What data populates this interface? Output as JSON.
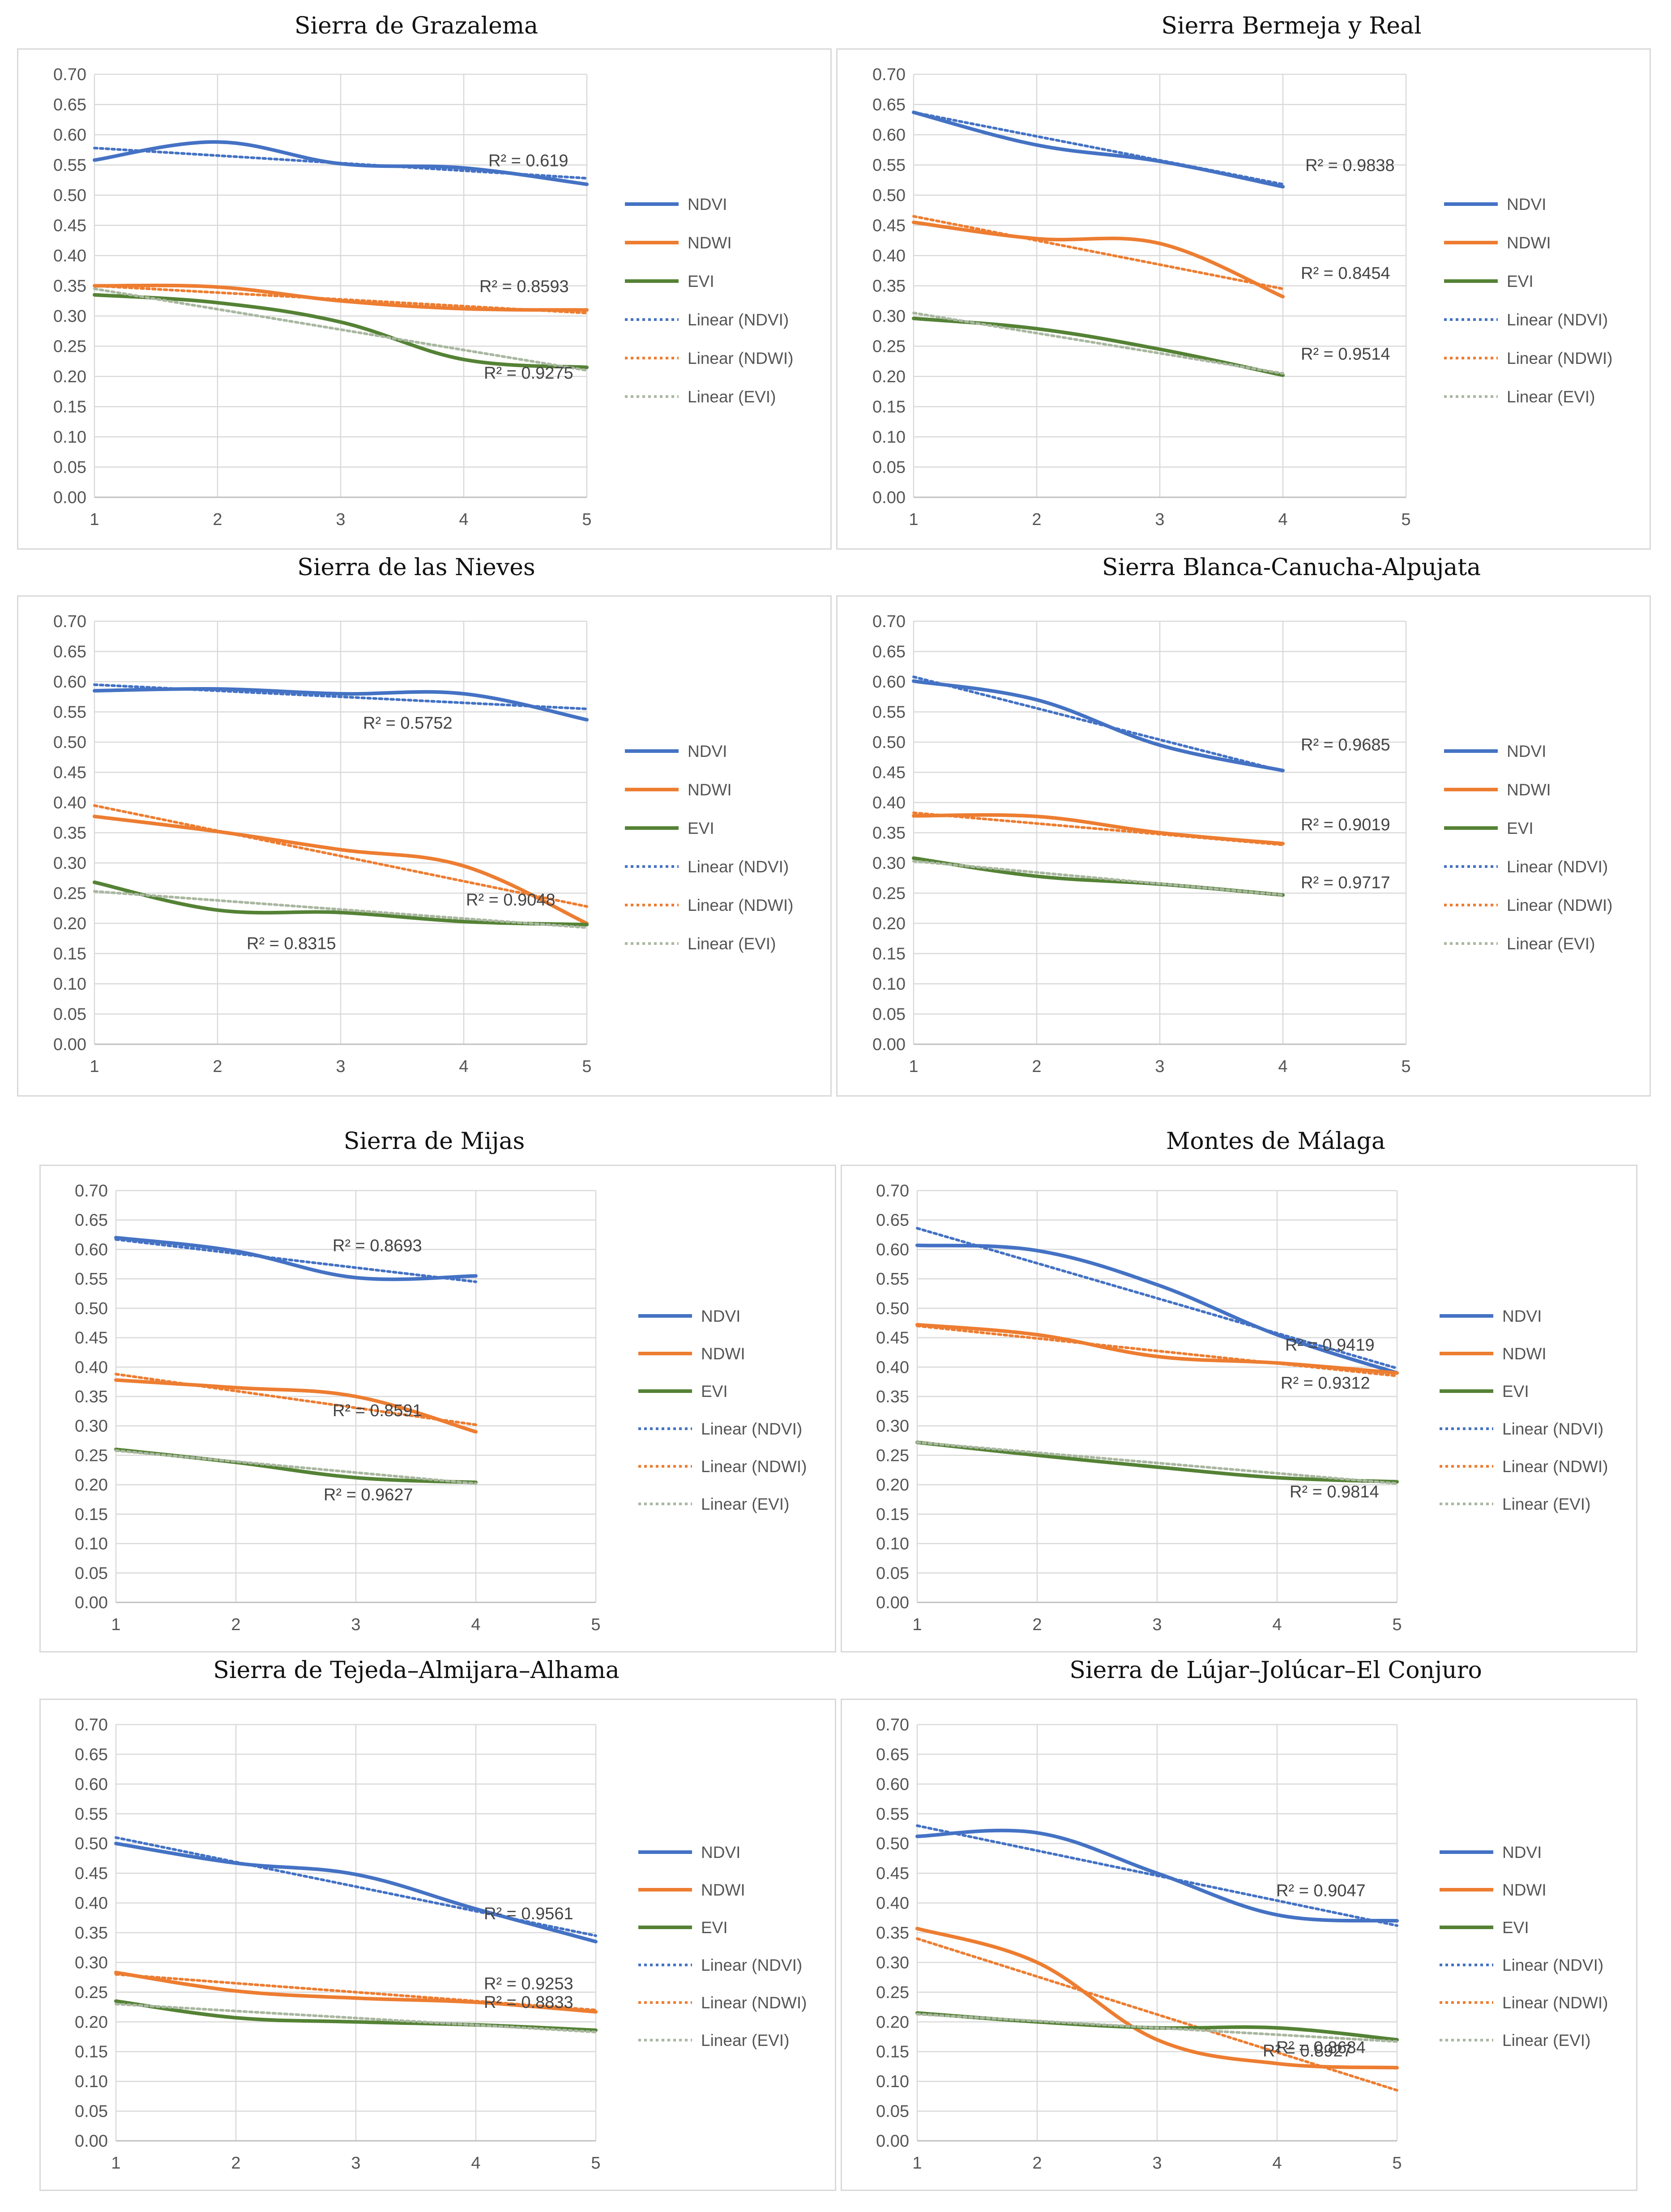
{
  "colors": {
    "ndvi": "#4472c4",
    "ndwi": "#ed7d31",
    "evi": "#548235",
    "evi_trend": "#a9b7a0"
  },
  "legend_labels": [
    "NDVI",
    "NDWI",
    "EVI",
    "Linear (NDVI)",
    "Linear (NDWI)",
    "Linear (EVI)"
  ],
  "chart_data": [
    {
      "type": "line",
      "title": "Sierra de Grazalema",
      "x_ticks": [
        "1",
        "2",
        "3",
        "4",
        "5"
      ],
      "y_ticks": [
        "0.70",
        "0.65",
        "0.60",
        "0.55",
        "0.50",
        "0.45",
        "0.40",
        "0.35",
        "0.30",
        "0.25",
        "0.20",
        "0.15",
        "0.10",
        "0.05",
        "0.00"
      ],
      "ylim": [
        0,
        0.7
      ],
      "xlim": [
        1,
        5
      ],
      "legend_position": "right",
      "series": [
        {
          "name": "NDVI",
          "x": [
            1,
            2,
            3,
            4,
            5
          ],
          "values": [
            0.558,
            0.588,
            0.552,
            0.545,
            0.518
          ],
          "trend": [
            0.578,
            0.528
          ],
          "r2": "R² = 0.619"
        },
        {
          "name": "NDWI",
          "x": [
            1,
            2,
            3,
            4,
            5
          ],
          "values": [
            0.35,
            0.348,
            0.325,
            0.312,
            0.31
          ],
          "trend": [
            0.35,
            0.305
          ],
          "r2": "R² = 0.8593"
        },
        {
          "name": "EVI",
          "x": [
            1,
            2,
            3,
            4,
            5
          ],
          "values": [
            0.335,
            0.322,
            0.29,
            0.228,
            0.215
          ],
          "trend": [
            0.345,
            0.21
          ],
          "r2": "R² = 0.9275"
        }
      ]
    },
    {
      "type": "line",
      "title": "Sierra Bermeja y Real",
      "x_ticks": [
        "1",
        "2",
        "3",
        "4",
        "5"
      ],
      "y_ticks": [
        "0.70",
        "0.65",
        "0.60",
        "0.55",
        "0.50",
        "0.45",
        "0.40",
        "0.35",
        "0.30",
        "0.25",
        "0.20",
        "0.15",
        "0.10",
        "0.05",
        "0.00"
      ],
      "ylim": [
        0,
        0.7
      ],
      "xlim": [
        1,
        5
      ],
      "legend_position": "right",
      "series": [
        {
          "name": "NDVI",
          "x": [
            1,
            2,
            3,
            4
          ],
          "values": [
            0.637,
            0.583,
            0.556,
            0.514
          ],
          "trend": [
            0.637,
            0.518
          ],
          "r2": "R² = 0.9838"
        },
        {
          "name": "NDWI",
          "x": [
            1,
            2,
            3,
            4
          ],
          "values": [
            0.455,
            0.428,
            0.42,
            0.332
          ],
          "trend": [
            0.465,
            0.345
          ],
          "r2": "R² = 0.8454"
        },
        {
          "name": "EVI",
          "x": [
            1,
            2,
            3,
            4
          ],
          "values": [
            0.296,
            0.279,
            0.245,
            0.202
          ],
          "trend": [
            0.305,
            0.205
          ],
          "r2": "R² = 0.9514"
        }
      ]
    },
    {
      "type": "line",
      "title": "Sierra de las Nieves",
      "x_ticks": [
        "1",
        "2",
        "3",
        "4",
        "5"
      ],
      "y_ticks": [
        "0.70",
        "0.65",
        "0.60",
        "0.55",
        "0.50",
        "0.45",
        "0.40",
        "0.35",
        "0.30",
        "0.25",
        "0.20",
        "0.15",
        "0.10",
        "0.05",
        "0.00"
      ],
      "ylim": [
        0,
        0.7
      ],
      "xlim": [
        1,
        5
      ],
      "legend_position": "right",
      "series": [
        {
          "name": "NDVI",
          "x": [
            1,
            2,
            3,
            4,
            5
          ],
          "values": [
            0.585,
            0.588,
            0.58,
            0.58,
            0.537
          ],
          "trend": [
            0.595,
            0.555
          ],
          "r2": "R² = 0.5752"
        },
        {
          "name": "NDWI",
          "x": [
            1,
            2,
            3,
            4,
            5
          ],
          "values": [
            0.377,
            0.352,
            0.322,
            0.295,
            0.2
          ],
          "trend": [
            0.395,
            0.228
          ],
          "r2": "R² = 0.9048"
        },
        {
          "name": "EVI",
          "x": [
            1,
            2,
            3,
            4,
            5
          ],
          "values": [
            0.268,
            0.222,
            0.218,
            0.203,
            0.198
          ],
          "trend": [
            0.253,
            0.193
          ],
          "r2": "R² = 0.8315"
        }
      ]
    },
    {
      "type": "line",
      "title": "Sierra Blanca-Canucha-Alpujata",
      "x_ticks": [
        "1",
        "2",
        "3",
        "4",
        "5"
      ],
      "y_ticks": [
        "0.70",
        "0.65",
        "0.60",
        "0.55",
        "0.50",
        "0.45",
        "0.40",
        "0.35",
        "0.30",
        "0.25",
        "0.20",
        "0.15",
        "0.10",
        "0.05",
        "0.00"
      ],
      "ylim": [
        0,
        0.7
      ],
      "xlim": [
        1,
        5
      ],
      "legend_position": "right",
      "series": [
        {
          "name": "NDVI",
          "x": [
            1,
            2,
            3,
            4
          ],
          "values": [
            0.601,
            0.57,
            0.495,
            0.453
          ],
          "trend": [
            0.608,
            0.452
          ],
          "r2": "R² = 0.9685"
        },
        {
          "name": "NDWI",
          "x": [
            1,
            2,
            3,
            4
          ],
          "values": [
            0.378,
            0.377,
            0.35,
            0.332
          ],
          "trend": [
            0.383,
            0.33
          ],
          "r2": "R² = 0.9019"
        },
        {
          "name": "EVI",
          "x": [
            1,
            2,
            3,
            4
          ],
          "values": [
            0.308,
            0.278,
            0.265,
            0.247
          ],
          "trend": [
            0.303,
            0.247
          ],
          "r2": "R² = 0.9717"
        }
      ]
    },
    {
      "type": "line",
      "title": "Sierra de Mijas",
      "x_ticks": [
        "1",
        "2",
        "3",
        "4",
        "5"
      ],
      "y_ticks": [
        "0.70",
        "0.65",
        "0.60",
        "0.55",
        "0.50",
        "0.45",
        "0.40",
        "0.35",
        "0.30",
        "0.25",
        "0.20",
        "0.15",
        "0.10",
        "0.05",
        "0.00"
      ],
      "ylim": [
        0,
        0.7
      ],
      "xlim": [
        1,
        5
      ],
      "legend_position": "right",
      "series": [
        {
          "name": "NDVI",
          "x": [
            1,
            2,
            3,
            4
          ],
          "values": [
            0.62,
            0.597,
            0.552,
            0.555
          ],
          "trend": [
            0.617,
            0.545
          ],
          "r2": "R² = 0.8693"
        },
        {
          "name": "NDWI",
          "x": [
            1,
            2,
            3,
            4
          ],
          "values": [
            0.378,
            0.365,
            0.35,
            0.29
          ],
          "trend": [
            0.388,
            0.302
          ],
          "r2": "R² = 0.8591"
        },
        {
          "name": "EVI",
          "x": [
            1,
            2,
            3,
            4
          ],
          "values": [
            0.26,
            0.238,
            0.212,
            0.204
          ],
          "trend": [
            0.258,
            0.202
          ],
          "r2": "R² = 0.9627"
        }
      ]
    },
    {
      "type": "line",
      "title": "Montes de Málaga",
      "x_ticks": [
        "1",
        "2",
        "3",
        "4",
        "5"
      ],
      "y_ticks": [
        "0.70",
        "0.65",
        "0.60",
        "0.55",
        "0.50",
        "0.45",
        "0.40",
        "0.35",
        "0.30",
        "0.25",
        "0.20",
        "0.15",
        "0.10",
        "0.05",
        "0.00"
      ],
      "ylim": [
        0,
        0.7
      ],
      "xlim": [
        1,
        5
      ],
      "legend_position": "right",
      "series": [
        {
          "name": "NDVI",
          "x": [
            1,
            2,
            3,
            4,
            5
          ],
          "values": [
            0.607,
            0.598,
            0.54,
            0.455,
            0.39
          ],
          "trend": [
            0.636,
            0.398
          ],
          "r2": "R² = 0.9419"
        },
        {
          "name": "NDWI",
          "x": [
            1,
            2,
            3,
            4,
            5
          ],
          "values": [
            0.472,
            0.455,
            0.418,
            0.407,
            0.39
          ],
          "trend": [
            0.47,
            0.385
          ],
          "r2": "R² = 0.9312"
        },
        {
          "name": "EVI",
          "x": [
            1,
            2,
            3,
            4,
            5
          ],
          "values": [
            0.272,
            0.25,
            0.23,
            0.212,
            0.205
          ],
          "trend": [
            0.272,
            0.202
          ],
          "r2": "R² = 0.9814"
        }
      ]
    },
    {
      "type": "line",
      "title": "Sierra de Tejeda–Almijara–Alhama",
      "x_ticks": [
        "1",
        "2",
        "3",
        "4",
        "5"
      ],
      "y_ticks": [
        "0.70",
        "0.65",
        "0.60",
        "0.55",
        "0.50",
        "0.45",
        "0.40",
        "0.35",
        "0.30",
        "0.25",
        "0.20",
        "0.15",
        "0.10",
        "0.05",
        "0.00"
      ],
      "ylim": [
        0,
        0.7
      ],
      "xlim": [
        1,
        5
      ],
      "legend_position": "right",
      "series": [
        {
          "name": "NDVI",
          "x": [
            1,
            2,
            3,
            4,
            5
          ],
          "values": [
            0.5,
            0.467,
            0.448,
            0.39,
            0.335
          ],
          "trend": [
            0.51,
            0.345
          ],
          "r2": "R² = 0.9561"
        },
        {
          "name": "NDWI",
          "x": [
            1,
            2,
            3,
            4,
            5
          ],
          "values": [
            0.283,
            0.252,
            0.24,
            0.233,
            0.217
          ],
          "trend": [
            0.28,
            0.22
          ],
          "r2": "R² = 0.9253"
        },
        {
          "name": "EVI",
          "x": [
            1,
            2,
            3,
            4,
            5
          ],
          "values": [
            0.235,
            0.207,
            0.2,
            0.195,
            0.186
          ],
          "trend": [
            0.23,
            0.183
          ],
          "r2": "R² = 0.8833"
        }
      ]
    },
    {
      "type": "line",
      "title": "Sierra de Lújar–Jolúcar–El Conjuro",
      "x_ticks": [
        "1",
        "2",
        "3",
        "4",
        "5"
      ],
      "y_ticks": [
        "0.70",
        "0.65",
        "0.60",
        "0.55",
        "0.50",
        "0.45",
        "0.40",
        "0.35",
        "0.30",
        "0.25",
        "0.20",
        "0.15",
        "0.10",
        "0.05",
        "0.00"
      ],
      "ylim": [
        0,
        0.7
      ],
      "xlim": [
        1,
        5
      ],
      "legend_position": "right",
      "series": [
        {
          "name": "NDVI",
          "x": [
            1,
            2,
            3,
            4,
            5
          ],
          "values": [
            0.512,
            0.518,
            0.45,
            0.38,
            0.37
          ],
          "trend": [
            0.53,
            0.362
          ],
          "r2": "R² = 0.9047"
        },
        {
          "name": "NDWI",
          "x": [
            1,
            2,
            3,
            4,
            5
          ],
          "values": [
            0.357,
            0.3,
            0.17,
            0.13,
            0.123
          ],
          "trend": [
            0.34,
            0.085
          ],
          "r2": "R² = 0.8927"
        },
        {
          "name": "EVI",
          "x": [
            1,
            2,
            3,
            4,
            5
          ],
          "values": [
            0.215,
            0.2,
            0.19,
            0.19,
            0.17
          ],
          "trend": [
            0.213,
            0.167
          ],
          "r2": "R² = 0.8684"
        }
      ]
    }
  ]
}
